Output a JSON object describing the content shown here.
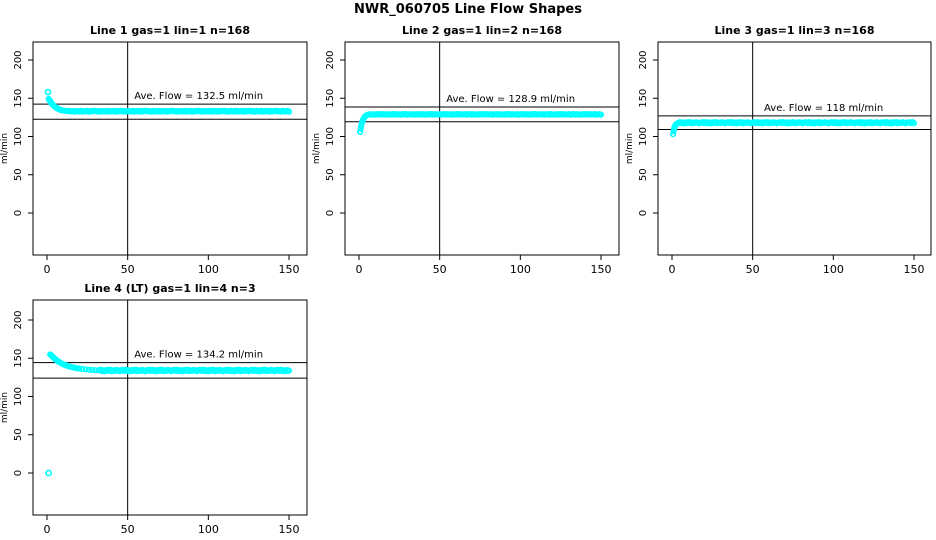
{
  "page_title": "NWR_060705  Line Flow Shapes",
  "accent_color": "#00FFFF",
  "axis_color": "#000000",
  "chart_data": [
    {
      "type": "scatter",
      "title": "Line 1 gas=1 lin=1 n=168",
      "ylabel": "ml/min",
      "xlabel": "",
      "ave_flow": 132.5,
      "annotation": "Ave. Flow =  132.5  ml/min",
      "ref_lines": [
        142.4,
        122.6
      ],
      "vline_x": 50,
      "xlim": [
        0,
        150
      ],
      "ylim": [
        0,
        200
      ],
      "x_ticks": [
        0,
        50,
        100,
        150
      ],
      "y_ticks": [
        0,
        50,
        100,
        150,
        200
      ],
      "marker": "open-circle",
      "outliers": [
        [
          0.6,
          158
        ]
      ],
      "ramp": [
        [
          1,
          149
        ],
        [
          1.5,
          147.5
        ],
        [
          2,
          146
        ],
        [
          2.5,
          144.5
        ],
        [
          3,
          143
        ],
        [
          3.5,
          141.8
        ],
        [
          4,
          140.6
        ],
        [
          4.5,
          139.6
        ],
        [
          5,
          138.7
        ],
        [
          5.5,
          137.9
        ],
        [
          6,
          137.2
        ],
        [
          6.5,
          136.6
        ],
        [
          7,
          136
        ],
        [
          7.5,
          135.5
        ],
        [
          8,
          135.1
        ],
        [
          8.5,
          134.7
        ],
        [
          9,
          134.4
        ],
        [
          9.5,
          134.1
        ],
        [
          10,
          133.9
        ],
        [
          11,
          133.6
        ],
        [
          12,
          133.4
        ],
        [
          13,
          133.2
        ]
      ],
      "steady": {
        "x_from": 14,
        "x_to": 150,
        "x_step": 1,
        "y_base": 133.0,
        "y_jitter": [
          0.5,
          -0.4,
          0.2,
          -0.6,
          0.4,
          0,
          -0.3,
          0.6,
          -0.5,
          0.2,
          -0.1,
          0.4,
          -0.6,
          0.3,
          -0.2,
          0.5
        ]
      }
    },
    {
      "type": "scatter",
      "title": "Line 2 gas=1 lin=2 n=168",
      "ylabel": "ml/min",
      "xlabel": "",
      "ave_flow": 128.9,
      "annotation": "Ave. Flow =  128.9  ml/min",
      "ref_lines": [
        138.6,
        119.2
      ],
      "vline_x": 50,
      "xlim": [
        0,
        150
      ],
      "ylim": [
        0,
        200
      ],
      "x_ticks": [
        0,
        50,
        100,
        150
      ],
      "y_ticks": [
        0,
        50,
        100,
        150,
        200
      ],
      "marker": "open-circle",
      "outliers": [],
      "ramp": [
        [
          0.7,
          106
        ],
        [
          1,
          110
        ],
        [
          1.3,
          113.5
        ],
        [
          1.6,
          116.5
        ],
        [
          2,
          119
        ],
        [
          2.4,
          121.2
        ],
        [
          2.8,
          123
        ],
        [
          3.2,
          124.5
        ],
        [
          3.6,
          125.7
        ],
        [
          4,
          126.6
        ],
        [
          4.5,
          127.4
        ],
        [
          5,
          128
        ],
        [
          5.5,
          128.4
        ],
        [
          6,
          128.7
        ]
      ],
      "steady": {
        "x_from": 7,
        "x_to": 150,
        "x_step": 1,
        "y_base": 128.9,
        "y_jitter": [
          0.4,
          -0.3,
          0.1,
          -0.5,
          0.3,
          -0.1,
          0.5,
          -0.4,
          0.2,
          0,
          -0.2,
          0.4,
          -0.5,
          0.1,
          0.3,
          -0.4
        ]
      }
    },
    {
      "type": "scatter",
      "title": "Line 3 gas=1 lin=3 n=168",
      "ylabel": "ml/min",
      "xlabel": "",
      "ave_flow": 118,
      "annotation": "Ave. Flow =  118  ml/min",
      "ref_lines": [
        126.9,
        109.2
      ],
      "vline_x": 50,
      "xlim": [
        0,
        150
      ],
      "ylim": [
        0,
        200
      ],
      "x_ticks": [
        0,
        50,
        100,
        150
      ],
      "y_ticks": [
        0,
        50,
        100,
        150,
        200
      ],
      "marker": "open-circle",
      "outliers": [],
      "ramp": [
        [
          0.7,
          103
        ],
        [
          1,
          107
        ],
        [
          1.3,
          110
        ],
        [
          1.6,
          112.5
        ],
        [
          2,
          114.3
        ],
        [
          2.5,
          115.8
        ],
        [
          3,
          116.7
        ],
        [
          3.5,
          117.2
        ],
        [
          4,
          117.6
        ]
      ],
      "steady": {
        "x_from": 5,
        "x_to": 150,
        "x_step": 1,
        "y_base": 118.0,
        "y_jitter": [
          0.8,
          -0.6,
          0.3,
          -0.9,
          0.5,
          -0.2,
          0.9,
          -0.7,
          0.2,
          -0.4,
          0.7,
          -0.1,
          -0.8,
          0.4,
          0.6,
          -0.5
        ]
      }
    },
    {
      "type": "scatter",
      "title": "Line 4 (LT) gas=1 lin=4 n=3",
      "ylabel": "ml/min",
      "xlabel": "",
      "ave_flow": 134.2,
      "annotation": "Ave. Flow =  134.2  ml/min",
      "ref_lines": [
        144.3,
        124.1
      ],
      "vline_x": 50,
      "xlim": [
        0,
        150
      ],
      "ylim": [
        0,
        200
      ],
      "x_ticks": [
        0,
        50,
        100,
        150
      ],
      "y_ticks": [
        0,
        50,
        100,
        150,
        200
      ],
      "marker": "open-circle",
      "outliers": [
        [
          1,
          0
        ]
      ],
      "ramp": [
        [
          2,
          155
        ],
        [
          2.5,
          154
        ],
        [
          3,
          153
        ],
        [
          3.5,
          152
        ],
        [
          4,
          151
        ],
        [
          4.5,
          150
        ],
        [
          5,
          149
        ],
        [
          5.5,
          148.2
        ],
        [
          6,
          147.4
        ],
        [
          6.5,
          146.6
        ],
        [
          7,
          145.8
        ],
        [
          7.5,
          145.1
        ],
        [
          8,
          144.4
        ],
        [
          9,
          143.2
        ],
        [
          10,
          142.2
        ],
        [
          11,
          141.3
        ],
        [
          12,
          140.5
        ],
        [
          13,
          139.8
        ],
        [
          14,
          139.2
        ],
        [
          15,
          138.6
        ],
        [
          16,
          138.1
        ],
        [
          17,
          137.6
        ],
        [
          18,
          137.2
        ],
        [
          19,
          136.8
        ],
        [
          20,
          136.5
        ],
        [
          22,
          135.9
        ],
        [
          24,
          135.4
        ],
        [
          26,
          135
        ],
        [
          28,
          134.7
        ],
        [
          30,
          134.4
        ],
        [
          32,
          134.2
        ]
      ],
      "steady": {
        "x_from": 33,
        "x_to": 150,
        "x_step": 1,
        "y_base": 134.0,
        "y_jitter": [
          1,
          -0.8,
          0.4,
          -1.1,
          0.7,
          -0.3,
          1.1,
          -0.9,
          0.3,
          -0.5,
          0.9,
          0,
          -1,
          0.5,
          0.8,
          -0.6
        ]
      }
    }
  ]
}
